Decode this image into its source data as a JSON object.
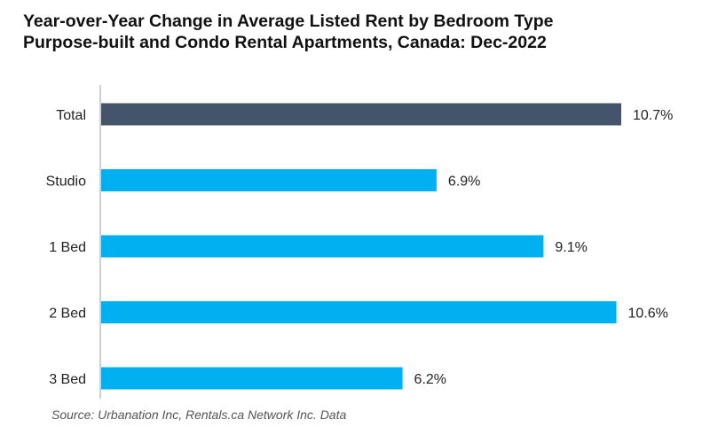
{
  "chart_data": {
    "type": "bar",
    "orientation": "horizontal",
    "title": "Year-over-Year Change in Average Listed Rent by Bedroom Type",
    "subtitle": "Purpose-built and Condo Rental Apartments, Canada: Dec-2022",
    "categories": [
      "Total",
      "Studio",
      "1 Bed",
      "2 Bed",
      "3 Bed"
    ],
    "values": [
      10.7,
      6.9,
      9.1,
      10.6,
      6.2
    ],
    "value_labels": [
      "10.7%",
      "6.9%",
      "9.1%",
      "10.6%",
      "6.2%"
    ],
    "xlim": [
      0,
      11.5
    ],
    "grid": false,
    "colors": {
      "highlight": "#44546a",
      "bar": "#00b0f0",
      "axis": "#bfbfbf"
    },
    "highlight_category": "Total"
  },
  "source": "Source: Urbanation Inc, Rentals.ca Network Inc. Data"
}
